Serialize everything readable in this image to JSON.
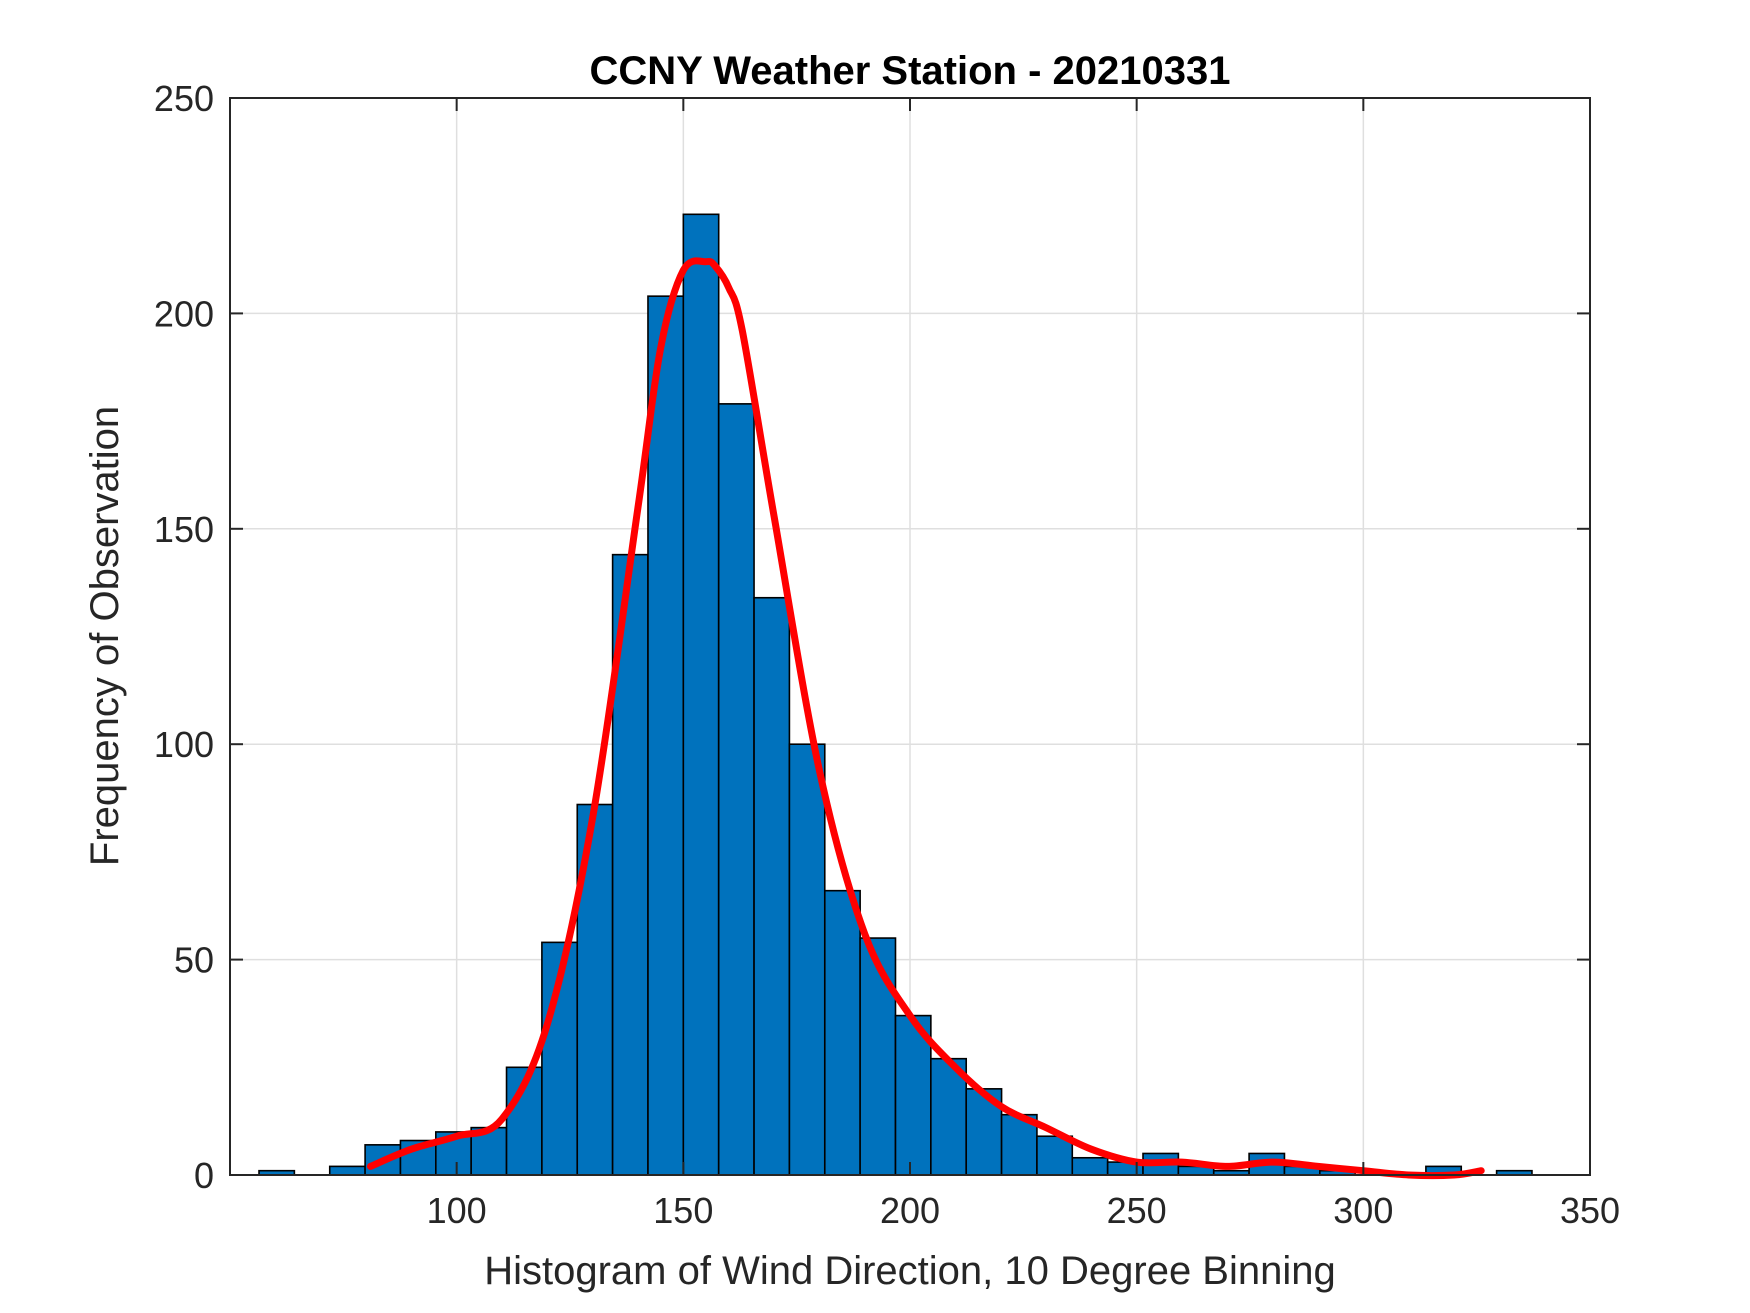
{
  "chart_data": {
    "type": "bar",
    "subtype": "histogram",
    "title": "CCNY Weather Station - 20210331",
    "xlabel": "Histogram of Wind Direction, 10 Degree Binning",
    "ylabel": "Frequency of Observation",
    "xlim": [
      50,
      350
    ],
    "ylim": [
      0,
      250
    ],
    "xticks": [
      100,
      150,
      200,
      250,
      300,
      350
    ],
    "yticks": [
      0,
      50,
      100,
      150,
      200,
      250
    ],
    "grid": true,
    "bin_width": 7.8,
    "bins": [
      {
        "x0": 56.4,
        "count": 1
      },
      {
        "x0": 72.0,
        "count": 2
      },
      {
        "x0": 79.8,
        "count": 7
      },
      {
        "x0": 87.6,
        "count": 8
      },
      {
        "x0": 95.4,
        "count": 10
      },
      {
        "x0": 103.2,
        "count": 11
      },
      {
        "x0": 111.0,
        "count": 25
      },
      {
        "x0": 118.8,
        "count": 54
      },
      {
        "x0": 126.6,
        "count": 86
      },
      {
        "x0": 134.4,
        "count": 144
      },
      {
        "x0": 142.2,
        "count": 204
      },
      {
        "x0": 150.0,
        "count": 223
      },
      {
        "x0": 157.8,
        "count": 179
      },
      {
        "x0": 165.6,
        "count": 134
      },
      {
        "x0": 173.4,
        "count": 100
      },
      {
        "x0": 181.2,
        "count": 66
      },
      {
        "x0": 189.0,
        "count": 55
      },
      {
        "x0": 196.8,
        "count": 37
      },
      {
        "x0": 204.6,
        "count": 27
      },
      {
        "x0": 212.4,
        "count": 20
      },
      {
        "x0": 220.2,
        "count": 14
      },
      {
        "x0": 228.0,
        "count": 9
      },
      {
        "x0": 235.8,
        "count": 4
      },
      {
        "x0": 243.6,
        "count": 3
      },
      {
        "x0": 251.4,
        "count": 5
      },
      {
        "x0": 259.2,
        "count": 2
      },
      {
        "x0": 267.0,
        "count": 1
      },
      {
        "x0": 274.8,
        "count": 5
      },
      {
        "x0": 282.6,
        "count": 2
      },
      {
        "x0": 290.4,
        "count": 1
      },
      {
        "x0": 298.2,
        "count": 0
      },
      {
        "x0": 306.0,
        "count": 0
      },
      {
        "x0": 313.8,
        "count": 2
      },
      {
        "x0": 321.6,
        "count": 0
      },
      {
        "x0": 329.4,
        "count": 1
      }
    ],
    "fit_curve": {
      "type": "line",
      "x": [
        81,
        90,
        100,
        110,
        120,
        130,
        140,
        145,
        150,
        155,
        157,
        160,
        163,
        170,
        180,
        190,
        200,
        210,
        220,
        230,
        240,
        250,
        260,
        270,
        280,
        290,
        300,
        310,
        320,
        326
      ],
      "y": [
        2,
        6,
        9,
        13,
        35,
        83,
        155,
        192,
        210,
        212,
        211,
        206,
        196,
        153,
        94,
        56,
        37,
        25,
        16,
        11,
        6,
        3,
        3,
        2,
        3,
        2,
        1,
        0,
        0,
        1
      ]
    },
    "colors": {
      "bar_fill": "#0072bd",
      "bar_edge": "#000000",
      "curve": "#ff0000",
      "grid": "#dfdfdf",
      "axes": "#262626"
    }
  }
}
